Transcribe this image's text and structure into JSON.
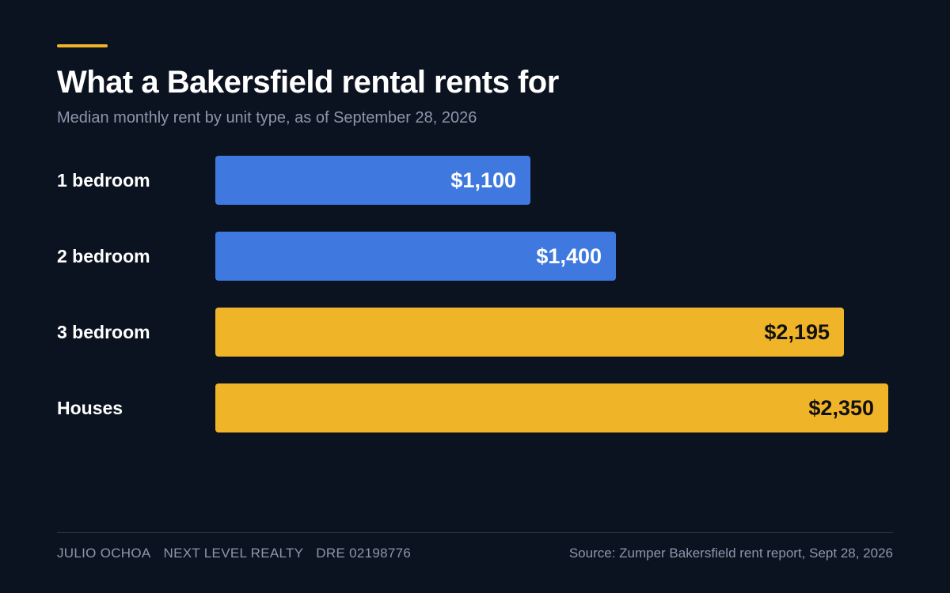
{
  "header": {
    "title": "What a Bakersfield rental rents for",
    "subtitle": "Median monthly rent by unit type, as of September 28, 2026"
  },
  "colors": {
    "background": "#0c1320",
    "accent": "#f0b429",
    "blue": "#3f79e0",
    "gold": "#f0b429"
  },
  "chart_data": {
    "type": "bar",
    "orientation": "horizontal",
    "title": "What a Bakersfield rental rents for",
    "subtitle": "Median monthly rent by unit type, as of September 28, 2026",
    "categories": [
      "1 bedroom",
      "2 bedroom",
      "3 bedroom",
      "Houses"
    ],
    "values": [
      1100,
      1400,
      2195,
      2350
    ],
    "value_labels": [
      "$1,100",
      "$1,400",
      "$2,195",
      "$2,350"
    ],
    "bar_colors": [
      "#3f79e0",
      "#3f79e0",
      "#f0b429",
      "#f0b429"
    ],
    "value_label_colors": [
      "#ffffff",
      "#ffffff",
      "#111111",
      "#111111"
    ],
    "xlim": [
      0,
      2350
    ],
    "grid": false,
    "legend": "none"
  },
  "footer": {
    "agent_name": "JULIO OCHOA",
    "brokerage": "NEXT LEVEL REALTY",
    "license": "DRE 02198776",
    "source": "Source: Zumper Bakersfield rent report, Sept 28, 2026"
  }
}
